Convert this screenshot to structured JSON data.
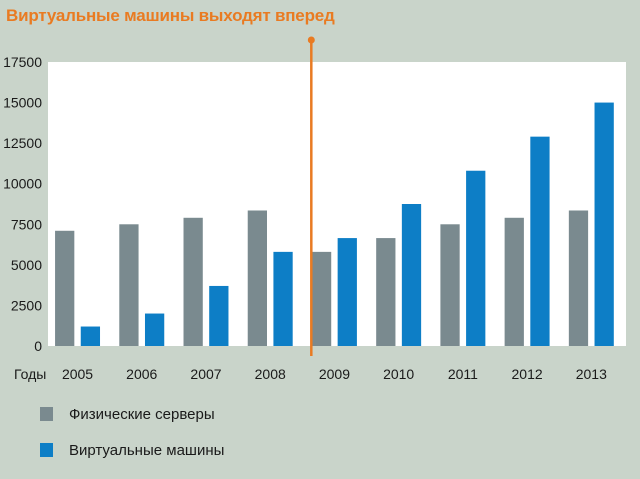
{
  "chart_data": {
    "type": "bar",
    "title": "Виртуальные машины выходят вперед",
    "xlabel": "Годы",
    "ylabel": "",
    "categories": [
      "2005",
      "2006",
      "2007",
      "2008",
      "2009",
      "2010",
      "2011",
      "2012",
      "2013"
    ],
    "series": [
      {
        "name": "Физические серверы",
        "color": "#7a8a8f",
        "values": [
          7100,
          7500,
          7900,
          8350,
          5800,
          6650,
          7500,
          7900,
          8350
        ]
      },
      {
        "name": "Виртуальные машины",
        "color": "#0d7ec6",
        "values": [
          1200,
          2000,
          3700,
          5800,
          6650,
          8750,
          10800,
          12900,
          15000
        ]
      }
    ],
    "ylim": [
      0,
      17500
    ],
    "yticks": [
      "0",
      "2500",
      "5000",
      "7500",
      "10000",
      "12500",
      "15000",
      "17500"
    ],
    "grid": false,
    "divider": {
      "after_category": "2008",
      "color": "#e97b22"
    },
    "legend_position": "bottom-left"
  }
}
